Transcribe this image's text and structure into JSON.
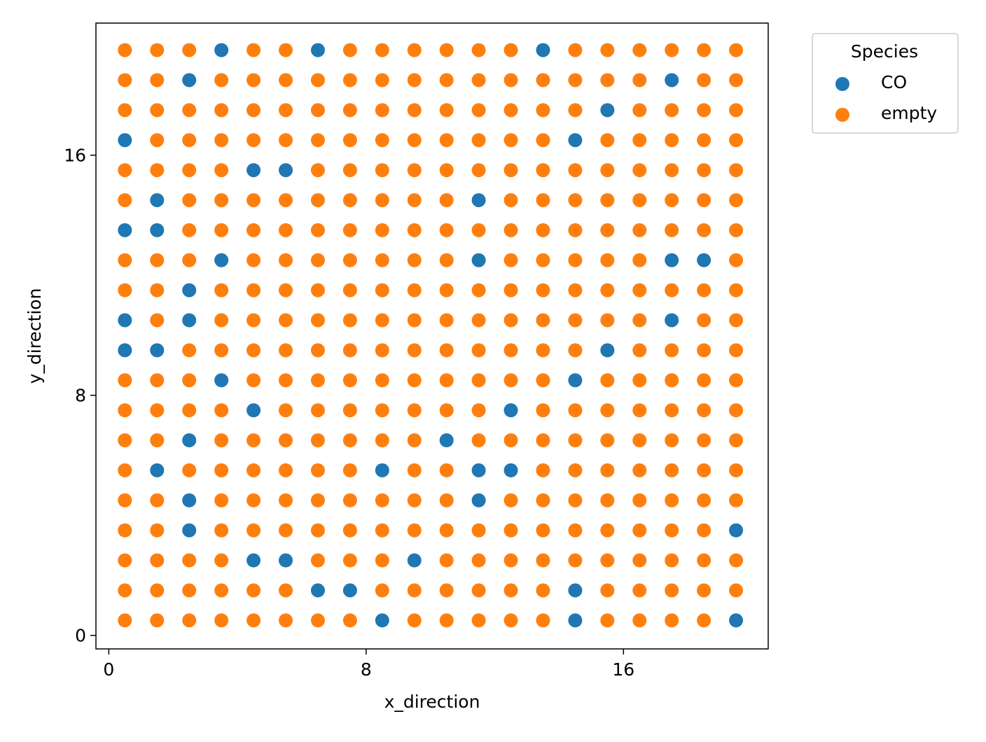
{
  "chart_data": {
    "type": "scatter",
    "xlabel": "x_direction",
    "ylabel": "y_direction",
    "xticks": [
      0,
      8,
      16
    ],
    "yticks": [
      0,
      8,
      16
    ],
    "xlim": [
      -0.4,
      20.5
    ],
    "ylim": [
      -0.45,
      20.4
    ],
    "legend": {
      "title": "Species",
      "placement": "outside-top-right"
    },
    "grid": false,
    "lattice": {
      "x": [
        0.5,
        1.5,
        2.5,
        3.5,
        4.5,
        5.5,
        6.5,
        7.5,
        8.5,
        9.5,
        10.5,
        11.5,
        12.5,
        13.5,
        14.5,
        15.5,
        16.5,
        17.5,
        18.5,
        19.5
      ],
      "y": [
        0.5,
        1.5,
        2.5,
        3.5,
        4.5,
        5.5,
        6.5,
        7.5,
        8.5,
        9.5,
        10.5,
        11.5,
        12.5,
        13.5,
        14.5,
        15.5,
        16.5,
        17.5,
        18.5,
        19.5
      ]
    },
    "series": [
      {
        "name": "CO",
        "color": "#1f77b4",
        "points": [
          [
            3.5,
            19.5
          ],
          [
            6.5,
            19.5
          ],
          [
            13.5,
            19.5
          ],
          [
            2.5,
            18.5
          ],
          [
            17.5,
            18.5
          ],
          [
            15.5,
            17.5
          ],
          [
            0.5,
            16.5
          ],
          [
            14.5,
            16.5
          ],
          [
            4.5,
            15.5
          ],
          [
            5.5,
            15.5
          ],
          [
            1.5,
            14.5
          ],
          [
            11.5,
            14.5
          ],
          [
            0.5,
            13.5
          ],
          [
            1.5,
            13.5
          ],
          [
            3.5,
            12.5
          ],
          [
            11.5,
            12.5
          ],
          [
            17.5,
            12.5
          ],
          [
            18.5,
            12.5
          ],
          [
            2.5,
            11.5
          ],
          [
            0.5,
            10.5
          ],
          [
            2.5,
            10.5
          ],
          [
            17.5,
            10.5
          ],
          [
            0.5,
            9.5
          ],
          [
            1.5,
            9.5
          ],
          [
            15.5,
            9.5
          ],
          [
            3.5,
            8.5
          ],
          [
            14.5,
            8.5
          ],
          [
            4.5,
            7.5
          ],
          [
            12.5,
            7.5
          ],
          [
            2.5,
            6.5
          ],
          [
            10.5,
            6.5
          ],
          [
            1.5,
            5.5
          ],
          [
            8.5,
            5.5
          ],
          [
            11.5,
            5.5
          ],
          [
            12.5,
            5.5
          ],
          [
            2.5,
            4.5
          ],
          [
            11.5,
            4.5
          ],
          [
            2.5,
            3.5
          ],
          [
            19.5,
            3.5
          ],
          [
            4.5,
            2.5
          ],
          [
            5.5,
            2.5
          ],
          [
            9.5,
            2.5
          ],
          [
            6.5,
            1.5
          ],
          [
            7.5,
            1.5
          ],
          [
            14.5,
            1.5
          ],
          [
            8.5,
            0.5
          ],
          [
            14.5,
            0.5
          ],
          [
            19.5,
            0.5
          ]
        ]
      },
      {
        "name": "empty",
        "color": "#ff7f0e",
        "points": "all remaining lattice sites"
      }
    ]
  }
}
